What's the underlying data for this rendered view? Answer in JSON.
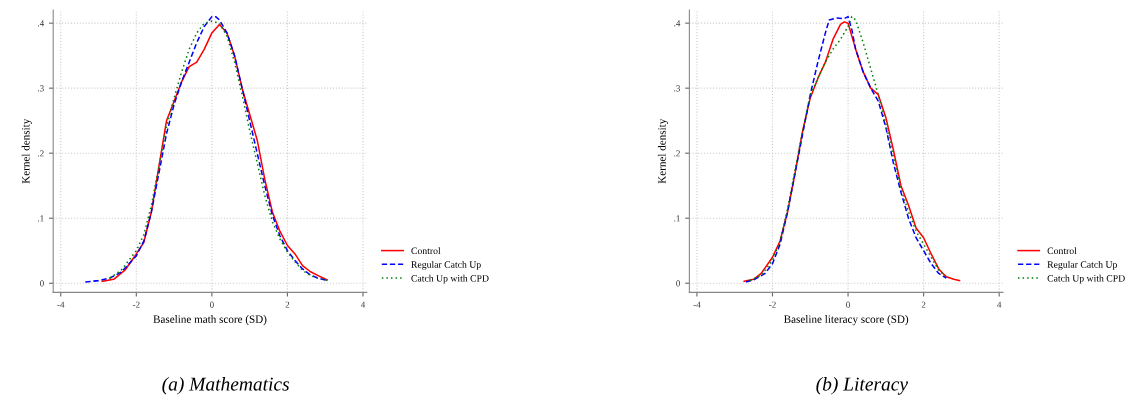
{
  "chart_data": [
    {
      "type": "line",
      "title": "(a) Mathematics",
      "xlabel": "Baseline math score (SD)",
      "ylabel": "Kernel density",
      "xlim": [
        -4.2,
        4.1
      ],
      "xticks": [
        -4,
        -2,
        0,
        2,
        4
      ],
      "ylim": [
        -0.014,
        0.42
      ],
      "yticks": [
        0,
        {
          "value": 0.1,
          "label": ".1"
        },
        {
          "value": 0.2,
          "label": ".2"
        },
        {
          "value": 0.3,
          "label": ".3"
        },
        {
          "value": 0.4,
          "label": ".4"
        }
      ],
      "grid": true,
      "legend": "bottom right",
      "marker": "none",
      "series": [
        {
          "name": "Control",
          "color": "#ff0000",
          "line_style": "solid",
          "x": [
            -2.9,
            -2.6,
            -2.3,
            -2.0,
            -1.8,
            -1.6,
            -1.4,
            -1.2,
            -1.0,
            -0.8,
            -0.6,
            -0.4,
            -0.2,
            0,
            0.2,
            0.4,
            0.6,
            0.8,
            1.0,
            1.2,
            1.4,
            1.6,
            1.8,
            2.0,
            2.2,
            2.4,
            2.6,
            2.8,
            3.05
          ],
          "values": [
            0.003,
            0.006,
            0.02,
            0.045,
            0.063,
            0.11,
            0.18,
            0.25,
            0.28,
            0.31,
            0.333,
            0.34,
            0.36,
            0.385,
            0.398,
            0.385,
            0.35,
            0.3,
            0.26,
            0.22,
            0.16,
            0.11,
            0.08,
            0.058,
            0.045,
            0.027,
            0.018,
            0.012,
            0.005
          ]
        },
        {
          "name": "Regular Catch Up",
          "color": "#0000ff",
          "line_style": "dashed",
          "x": [
            -3.35,
            -3.0,
            -2.7,
            -2.4,
            -2.0,
            -1.8,
            -1.6,
            -1.4,
            -1.2,
            -1.0,
            -0.8,
            -0.6,
            -0.4,
            -0.2,
            0,
            0.1,
            0.2,
            0.4,
            0.6,
            0.8,
            1.0,
            1.2,
            1.4,
            1.6,
            1.8,
            2.0,
            2.2,
            2.4,
            2.6,
            2.8,
            3.0
          ],
          "values": [
            0.002,
            0.004,
            0.008,
            0.017,
            0.042,
            0.065,
            0.11,
            0.17,
            0.23,
            0.275,
            0.31,
            0.34,
            0.37,
            0.395,
            0.41,
            0.41,
            0.405,
            0.385,
            0.35,
            0.3,
            0.25,
            0.2,
            0.15,
            0.105,
            0.073,
            0.05,
            0.035,
            0.022,
            0.013,
            0.008,
            0.005
          ]
        },
        {
          "name": "Catch Up with CPD",
          "color": "#008000",
          "line_style": "dotted",
          "x": [
            -2.7,
            -2.4,
            -2.0,
            -1.8,
            -1.6,
            -1.4,
            -1.2,
            -1.0,
            -0.8,
            -0.6,
            -0.4,
            -0.2,
            0,
            0.2,
            0.4,
            0.6,
            0.8,
            1.0,
            1.2,
            1.4,
            1.6,
            1.8,
            2.0,
            2.2,
            2.4,
            2.6,
            2.8,
            3.05
          ],
          "values": [
            0.008,
            0.02,
            0.05,
            0.075,
            0.12,
            0.18,
            0.24,
            0.285,
            0.325,
            0.36,
            0.385,
            0.4,
            0.403,
            0.4,
            0.38,
            0.34,
            0.29,
            0.235,
            0.185,
            0.135,
            0.095,
            0.068,
            0.048,
            0.033,
            0.02,
            0.012,
            0.008,
            0.004
          ]
        }
      ]
    },
    {
      "type": "line",
      "title": "(b) Literacy",
      "xlabel": "Baseline literacy score (SD)",
      "ylabel": "Kernel density",
      "xlim": [
        -4.2,
        4.1
      ],
      "xticks": [
        -4,
        -2,
        0,
        2,
        4
      ],
      "ylim": [
        -0.014,
        0.42
      ],
      "yticks": [
        0,
        {
          "value": 0.1,
          "label": ".1"
        },
        {
          "value": 0.2,
          "label": ".2"
        },
        {
          "value": 0.3,
          "label": ".3"
        },
        {
          "value": 0.4,
          "label": ".4"
        }
      ],
      "grid": true,
      "legend": "bottom right",
      "marker": "none",
      "series": [
        {
          "name": "Control",
          "color": "#ff0000",
          "line_style": "solid",
          "x": [
            -2.75,
            -2.5,
            -2.3,
            -2.0,
            -1.8,
            -1.6,
            -1.4,
            -1.2,
            -1.0,
            -0.8,
            -0.6,
            -0.4,
            -0.2,
            -0.1,
            0,
            0.2,
            0.4,
            0.6,
            0.8,
            1.0,
            1.2,
            1.4,
            1.6,
            1.8,
            2.0,
            2.2,
            2.4,
            2.6,
            2.8,
            2.95
          ],
          "values": [
            0.003,
            0.006,
            0.015,
            0.04,
            0.065,
            0.11,
            0.17,
            0.235,
            0.285,
            0.315,
            0.34,
            0.375,
            0.398,
            0.402,
            0.4,
            0.36,
            0.325,
            0.3,
            0.29,
            0.255,
            0.205,
            0.15,
            0.12,
            0.085,
            0.07,
            0.045,
            0.022,
            0.01,
            0.006,
            0.004
          ]
        },
        {
          "name": "Regular Catch Up",
          "color": "#0000ff",
          "line_style": "dashed",
          "x": [
            -2.7,
            -2.5,
            -2.2,
            -2.0,
            -1.8,
            -1.6,
            -1.4,
            -1.2,
            -1.0,
            -0.8,
            -0.6,
            -0.5,
            -0.3,
            -0.1,
            0,
            0.1,
            0.2,
            0.4,
            0.6,
            0.8,
            1.0,
            1.2,
            1.4,
            1.6,
            1.8,
            2.0,
            2.2,
            2.4,
            2.6
          ],
          "values": [
            0.002,
            0.005,
            0.015,
            0.03,
            0.06,
            0.11,
            0.17,
            0.23,
            0.29,
            0.34,
            0.385,
            0.405,
            0.408,
            0.407,
            0.41,
            0.39,
            0.36,
            0.325,
            0.3,
            0.28,
            0.24,
            0.185,
            0.14,
            0.1,
            0.07,
            0.05,
            0.03,
            0.015,
            0.008
          ]
        },
        {
          "name": "Catch Up with CPD",
          "color": "#008000",
          "line_style": "dotted",
          "x": [
            -2.6,
            -2.3,
            -2.0,
            -1.8,
            -1.6,
            -1.4,
            -1.2,
            -1.0,
            -0.8,
            -0.6,
            -0.4,
            -0.2,
            0,
            0.1,
            0.2,
            0.4,
            0.6,
            0.8,
            1.0,
            1.2,
            1.4,
            1.6,
            1.8,
            2.0,
            2.2,
            2.4,
            2.6
          ],
          "values": [
            0.004,
            0.012,
            0.035,
            0.065,
            0.115,
            0.175,
            0.235,
            0.29,
            0.315,
            0.34,
            0.36,
            0.375,
            0.395,
            0.41,
            0.405,
            0.37,
            0.33,
            0.29,
            0.245,
            0.195,
            0.145,
            0.11,
            0.08,
            0.06,
            0.04,
            0.02,
            0.01
          ]
        }
      ]
    }
  ]
}
